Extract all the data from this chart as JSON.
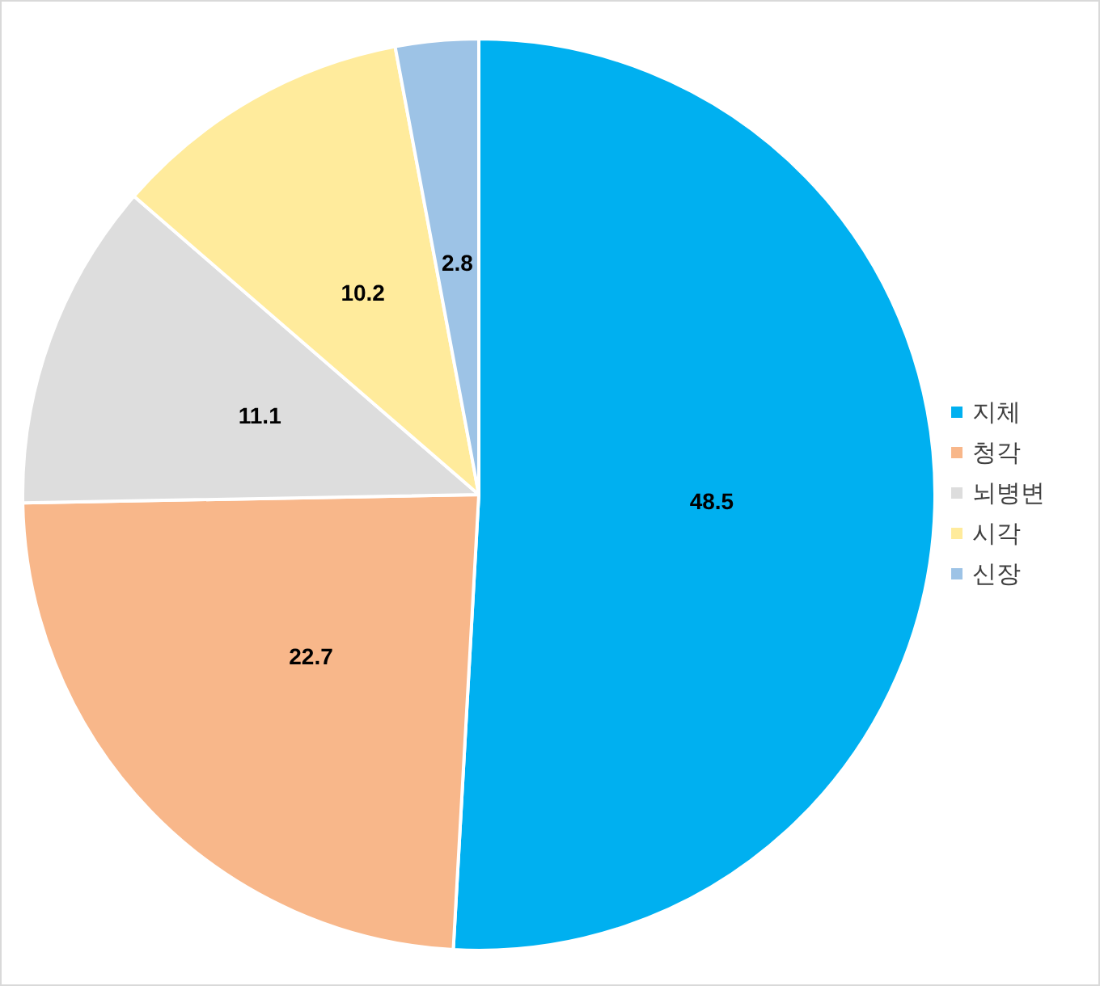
{
  "chart_data": {
    "type": "pie",
    "categories": [
      "지체",
      "청각",
      "뇌병변",
      "시각",
      "신장"
    ],
    "values": [
      48.5,
      22.7,
      11.1,
      10.2,
      2.8
    ],
    "colors": [
      "#00b0f0",
      "#f8b78a",
      "#dddddd",
      "#ffeb9c",
      "#9dc3e6"
    ],
    "data_labels": true,
    "legend": "right"
  }
}
